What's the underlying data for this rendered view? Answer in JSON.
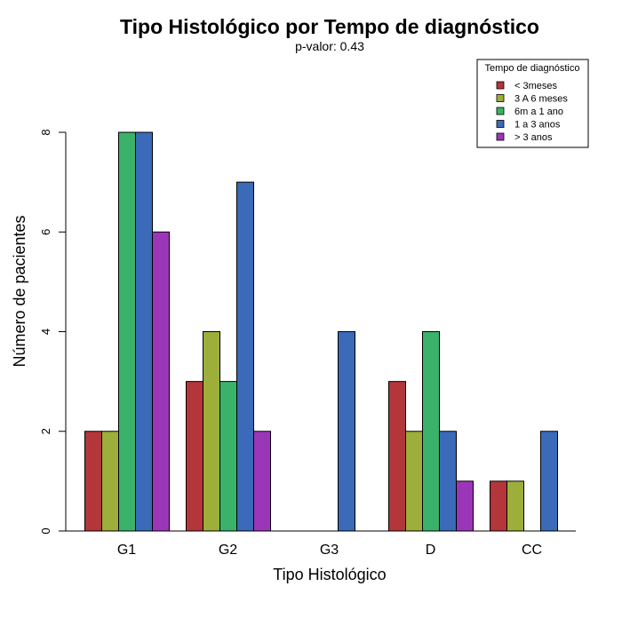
{
  "chart_data": {
    "type": "bar",
    "title": "Tipo Histológico por Tempo de diagnóstico",
    "subtitle": "p-valor: 0.43",
    "xlabel": "Tipo Histológico",
    "ylabel": "Número de pacientes",
    "categories": [
      "G1",
      "G2",
      "G3",
      "D",
      "CC"
    ],
    "yticks": [
      "0",
      "2",
      "4",
      "6",
      "8"
    ],
    "ylim": [
      0,
      8.5
    ],
    "grid": false,
    "legend": {
      "title": "Tempo de diagnóstico",
      "placement": "top-right"
    },
    "series": [
      {
        "name": "< 3meses",
        "color": "#B2363A",
        "values": [
          2,
          3,
          0,
          3,
          1
        ]
      },
      {
        "name": "3 A 6 meses",
        "color": "#9DAE3A",
        "values": [
          2,
          4,
          0,
          2,
          1
        ]
      },
      {
        "name": "6m a 1 ano",
        "color": "#3AB26A",
        "values": [
          8,
          3,
          0,
          4,
          0
        ]
      },
      {
        "name": "1 a 3 anos",
        "color": "#3A6AB8",
        "values": [
          8,
          7,
          4,
          2,
          2
        ]
      },
      {
        "name": "> 3 anos",
        "color": "#9C36B8",
        "values": [
          6,
          2,
          0,
          1,
          0
        ]
      }
    ]
  }
}
